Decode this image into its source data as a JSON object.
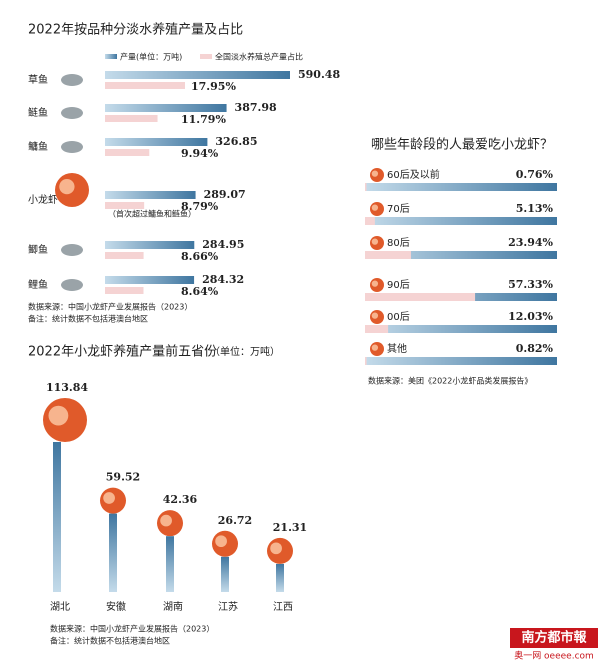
{
  "chart_data": [
    {
      "type": "hbar-pair",
      "title": "2022年按品种分淡水养殖产量及占比",
      "categories": [
        "草鱼",
        "鲢鱼",
        "鳙鱼",
        "小龙虾",
        "鲫鱼",
        "鲤鱼"
      ],
      "series": [
        {
          "name": "产量(单位：万吨)",
          "color": "#4d80a8",
          "values": [
            590.48,
            387.98,
            326.85,
            289.07,
            284.95,
            284.32
          ]
        },
        {
          "name": "全国淡水养殖总产量占比",
          "color": "#f5d3d3",
          "values": [
            17.95,
            11.79,
            9.94,
            8.79,
            8.66,
            8.64
          ],
          "value_labels": [
            "17.95%",
            "11.79%",
            "9.94%",
            "8.79%",
            "8.66%",
            "8.64%"
          ]
        }
      ],
      "annotation": "（首次超过鳙鱼和鲢鱼）",
      "notes": [
        "数据来源：中国小龙虾产业发展报告（2023）",
        "备注：统计数据不包括港澳台地区"
      ]
    },
    {
      "type": "column",
      "title": "2022年小龙虾养殖产量前五省份",
      "subtitle": "（单位：万吨）",
      "categories": [
        "湖北",
        "安徽",
        "湖南",
        "江苏",
        "江西"
      ],
      "values": [
        113.84,
        59.52,
        42.36,
        26.72,
        21.31
      ],
      "color": "#4d80a8",
      "notes": [
        "数据来源：中国小龙虾产业发展报告（2023）",
        "备注：统计数据不包括港澳台地区"
      ]
    },
    {
      "type": "share-bar",
      "title": "哪些年龄段的人最爱吃小龙虾？",
      "categories": [
        "60后及以前",
        "70后",
        "80后",
        "90后",
        "00后",
        "其他"
      ],
      "values": [
        0.76,
        5.13,
        23.94,
        57.33,
        12.03,
        0.82
      ],
      "value_labels": [
        "0.76%",
        "5.13%",
        "23.94%",
        "57.33%",
        "12.03%",
        "0.82%"
      ],
      "color": "#f5d3d3",
      "notes": [
        "数据来源：美团《2022小龙虾品类发展报告》"
      ]
    }
  ],
  "footer": {
    "logo": "南方都市報",
    "site": "奥一网 oeeee.com"
  }
}
